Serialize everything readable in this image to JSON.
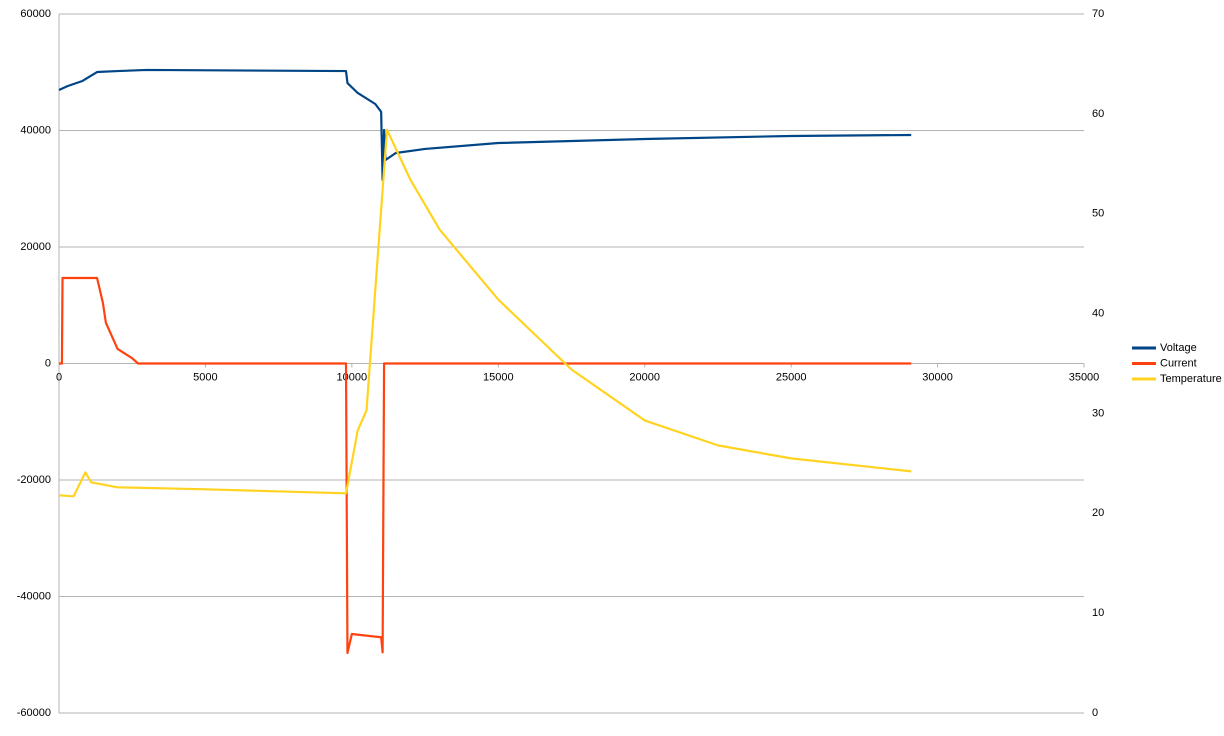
{
  "chart_data": {
    "type": "line",
    "xlim": [
      0,
      35000
    ],
    "xticks": [
      0,
      5000,
      10000,
      15000,
      20000,
      25000,
      30000,
      35000
    ],
    "ylim": [
      -60000,
      60000
    ],
    "yticks": [
      -60000,
      -40000,
      -20000,
      0,
      20000,
      40000,
      60000
    ],
    "y2lim": [
      0,
      70
    ],
    "y2ticks": [
      0,
      10,
      20,
      30,
      40,
      50,
      60,
      70
    ],
    "grid": true,
    "legend": "right",
    "series": [
      {
        "name": "Voltage",
        "color": "#004586",
        "x": [
          0,
          300,
          800,
          1300,
          2000,
          3000,
          9800,
          9850,
          10200,
          10800,
          11000,
          11050,
          11100,
          11150,
          11500,
          12500,
          15000,
          20000,
          25000,
          29100
        ],
        "values": [
          46950,
          47640,
          48500,
          50040,
          50200,
          50400,
          50200,
          48150,
          46440,
          44550,
          43200,
          31500,
          40090,
          34940,
          36140,
          36830,
          37850,
          38540,
          39060,
          39230
        ]
      },
      {
        "name": "Current",
        "color": "#ff420e",
        "x": [
          0,
          100,
          120,
          1300,
          1500,
          1600,
          2000,
          2500,
          2700,
          9800,
          9850,
          10000,
          11000,
          11050,
          11100,
          29100
        ],
        "values": [
          0,
          0,
          14680,
          14680,
          10390,
          7000,
          2500,
          900,
          0,
          0,
          -49700,
          -46435,
          -47000,
          -49600,
          0,
          0
        ]
      },
      {
        "name": "Temperature",
        "color": "#ffd320",
        "axis": "y2",
        "x": [
          0,
          500,
          900,
          1100,
          2000,
          5000,
          9800,
          10200,
          10500,
          11000,
          11200,
          12000,
          13000,
          15000,
          17500,
          20000,
          22500,
          25000,
          29100
        ],
        "values": [
          21.8,
          21.7,
          24.1,
          23.1,
          22.6,
          22.4,
          22.0,
          28.3,
          30.3,
          50.4,
          58.4,
          53.4,
          48.4,
          41.4,
          34.4,
          29.3,
          26.8,
          25.5,
          24.2
        ]
      }
    ]
  }
}
